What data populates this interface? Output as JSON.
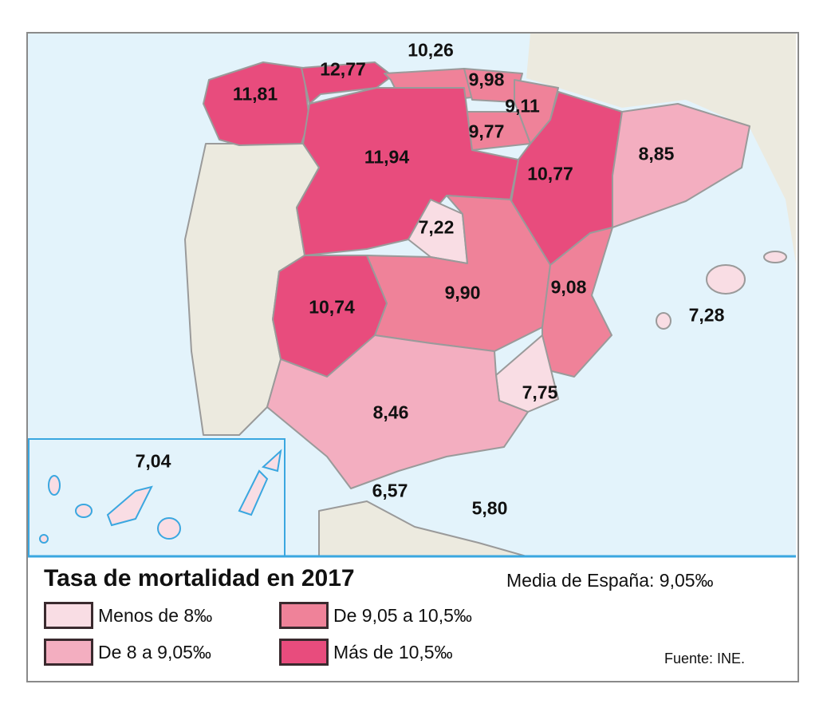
{
  "title": "Tasa de mortalidad en 2017",
  "average": "Media de España: 9,05‰",
  "source": "Fuente: INE.",
  "colors": {
    "sea": "#e3f3fb",
    "land": "#eceadf",
    "c1": "#f9dde4",
    "c2": "#f3aec0",
    "c3": "#ef8299",
    "c4": "#e84c7d"
  },
  "legend": [
    {
      "label": "Menos de 8‰",
      "color": "#f9dde4"
    },
    {
      "label": "De 8 a 9,05‰",
      "color": "#f3aec0"
    },
    {
      "label": "De 9,05 a 10,5‰",
      "color": "#ef8299"
    },
    {
      "label": "Más de 10,5‰",
      "color": "#e84c7d"
    }
  ],
  "regions": {
    "galicia": "11,81",
    "asturias": "12,77",
    "cantabria": "10,26",
    "pais_vasco": "9,98",
    "navarra": "9,11",
    "la_rioja": "9,77",
    "castilla_leon": "11,94",
    "aragon": "10,77",
    "cataluna": "8,85",
    "madrid": "7,22",
    "castilla_la_mancha": "9,90",
    "extremadura": "10,74",
    "valencia": "9,08",
    "baleares": "7,28",
    "murcia": "7,75",
    "andalucia": "8,46",
    "canarias": "7,04",
    "ceuta": "6,57",
    "melilla": "5,80"
  }
}
